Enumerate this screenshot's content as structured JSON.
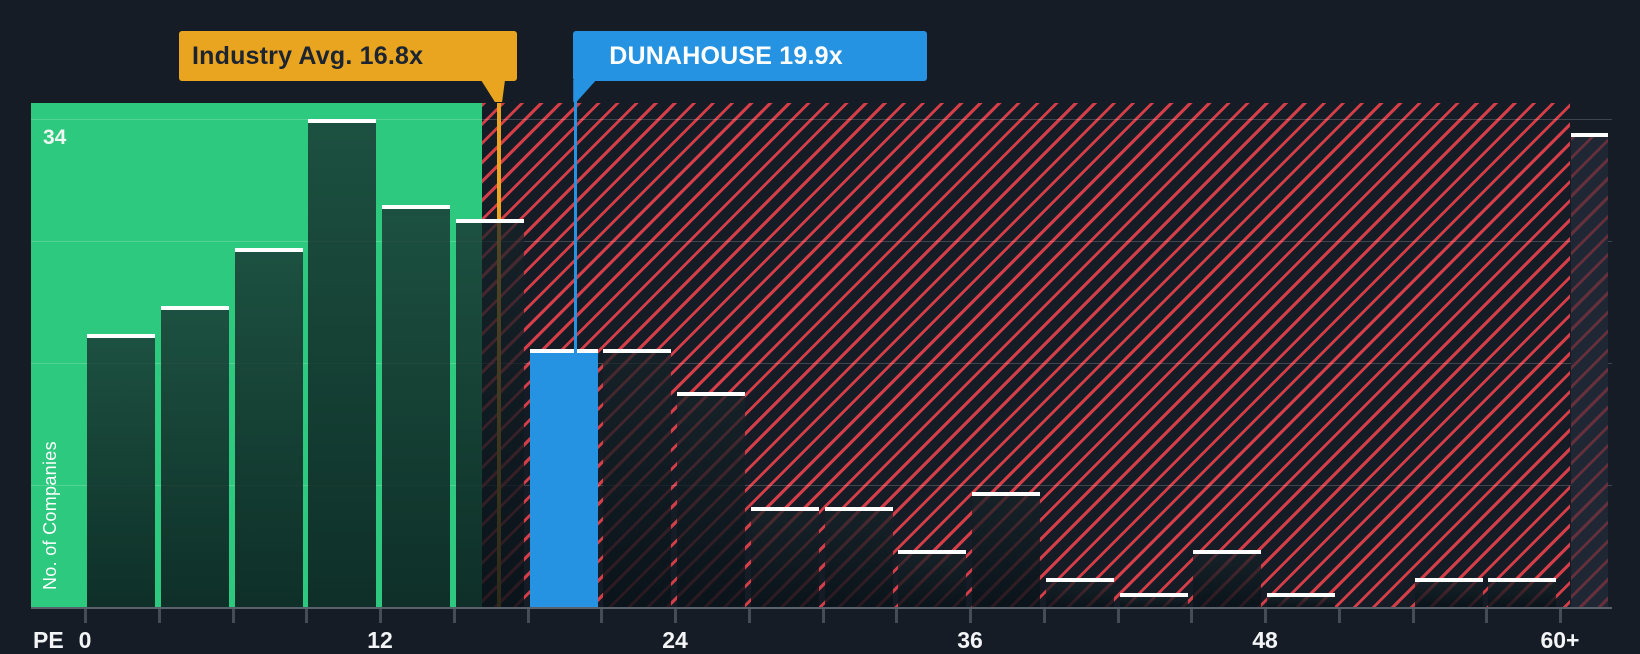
{
  "chart_data": {
    "type": "bar",
    "x_axis_prefix": "PE",
    "ylabel": "No. of Companies",
    "ymax_label": "34",
    "ylim": [
      0,
      34
    ],
    "x_tick_labels": [
      "0",
      "12",
      "24",
      "36",
      "48",
      "60+"
    ],
    "x_tick_values": [
      0,
      12,
      24,
      36,
      48,
      60
    ],
    "bin_size_pe": 3,
    "bins": [
      {
        "range": "0-3",
        "count": 19
      },
      {
        "range": "3-6",
        "count": 21
      },
      {
        "range": "6-9",
        "count": 25
      },
      {
        "range": "9-12",
        "count": 34
      },
      {
        "range": "12-15",
        "count": 28
      },
      {
        "range": "15-18",
        "count": 27
      },
      {
        "range": "18-21",
        "count": 18,
        "highlight": "company"
      },
      {
        "range": "21-24",
        "count": 18
      },
      {
        "range": "24-27",
        "count": 15
      },
      {
        "range": "27-30",
        "count": 7
      },
      {
        "range": "30-33",
        "count": 7
      },
      {
        "range": "33-36",
        "count": 4
      },
      {
        "range": "36-39",
        "count": 8
      },
      {
        "range": "39-42",
        "count": 2
      },
      {
        "range": "42-45",
        "count": 1
      },
      {
        "range": "45-48",
        "count": 4
      },
      {
        "range": "48-51",
        "count": 1
      },
      {
        "range": "51-54",
        "count": 0
      },
      {
        "range": "54-57",
        "count": 2
      },
      {
        "range": "57-60",
        "count": 2
      },
      {
        "range": "60+",
        "count": 33
      }
    ],
    "annotations": {
      "company": {
        "label": "DUNAHOUSE 19.9x",
        "value": 19.9
      },
      "industry": {
        "label": "Industry Avg. 16.8x",
        "value": 16.8
      }
    },
    "colors": {
      "background": "#161c26",
      "below_avg_zone": "#2dc97e",
      "above_avg_hatch": "#f4444e",
      "company_bar": "#2593e2",
      "industry_marker": "#e9a51f",
      "bar_cap": "#ffffff"
    },
    "legend_position": "none",
    "grid": "on"
  }
}
